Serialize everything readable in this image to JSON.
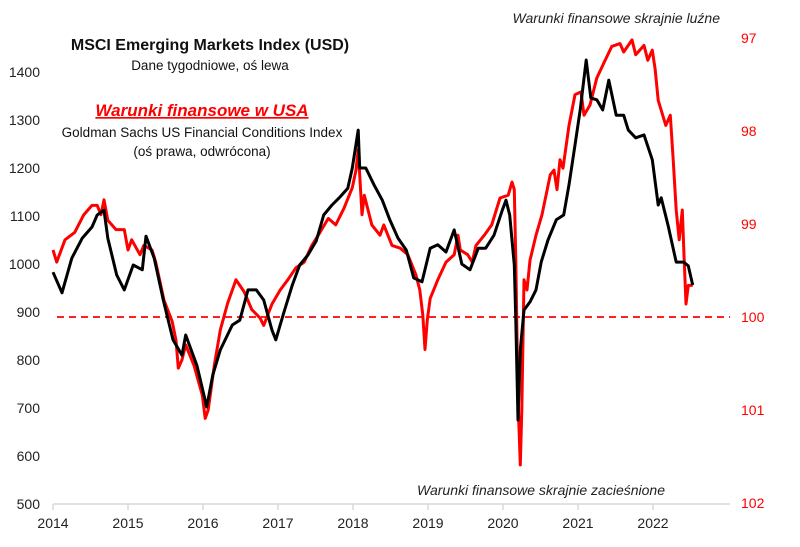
{
  "chart_data": {
    "type": "line",
    "title": "MSCI Emerging Markets Index (USD)",
    "subtitle": "Dane tygodniowe, oś lewa",
    "series2_title": "Warunki finansowe w USA",
    "series2_subtitle": "Goldman Sachs US Financial Conditions Index",
    "series2_note": "(oś prawa, odwrócona)",
    "annotation_top": "Warunki finansowe skrajnie luźne",
    "annotation_bottom": "Warunki finansowe skrajnie zacieśnione",
    "x_ticks": [
      "2014",
      "2015",
      "2016",
      "2017",
      "2018",
      "2019",
      "2020",
      "2021",
      "2022"
    ],
    "xlim": [
      2014,
      2023.05
    ],
    "y_left_ticks": [
      "500",
      "600",
      "700",
      "800",
      "900",
      "1000",
      "1100",
      "1200",
      "1300",
      "1400"
    ],
    "ylim_left": [
      500,
      1400
    ],
    "y_right_ticks": [
      "97",
      "98",
      "99",
      "100",
      "101",
      "102"
    ],
    "ylim_right": [
      102,
      97
    ],
    "y_right_inverted": true,
    "reference_line": {
      "axis": "right",
      "value": 100,
      "style": "dashed",
      "color": "#ff0000"
    },
    "grid": false,
    "series": [
      {
        "name": "MSCI Emerging Markets Index (USD)",
        "axis": "left",
        "color": "#000000",
        "points": [
          [
            2014.0,
            983
          ],
          [
            2014.12,
            940
          ],
          [
            2014.25,
            1012
          ],
          [
            2014.39,
            1054
          ],
          [
            2014.52,
            1077
          ],
          [
            2014.59,
            1102
          ],
          [
            2014.68,
            1112
          ],
          [
            2014.73,
            1054
          ],
          [
            2014.85,
            977
          ],
          [
            2014.95,
            946
          ],
          [
            2015.07,
            998
          ],
          [
            2015.19,
            988
          ],
          [
            2015.24,
            1058
          ],
          [
            2015.35,
            1012
          ],
          [
            2015.47,
            925
          ],
          [
            2015.6,
            842
          ],
          [
            2015.72,
            810
          ],
          [
            2015.77,
            852
          ],
          [
            2015.92,
            788
          ],
          [
            2016.01,
            729
          ],
          [
            2016.05,
            702
          ],
          [
            2016.13,
            769
          ],
          [
            2016.23,
            821
          ],
          [
            2016.39,
            873
          ],
          [
            2016.49,
            883
          ],
          [
            2016.6,
            946
          ],
          [
            2016.71,
            946
          ],
          [
            2016.81,
            925
          ],
          [
            2016.92,
            862
          ],
          [
            2016.97,
            842
          ],
          [
            2017.08,
            900
          ],
          [
            2017.19,
            956
          ],
          [
            2017.29,
            998
          ],
          [
            2017.4,
            1019
          ],
          [
            2017.51,
            1048
          ],
          [
            2017.61,
            1102
          ],
          [
            2017.72,
            1123
          ],
          [
            2017.83,
            1140
          ],
          [
            2017.93,
            1158
          ],
          [
            2017.99,
            1200
          ],
          [
            2018.07,
            1279
          ],
          [
            2018.09,
            1200
          ],
          [
            2018.17,
            1200
          ],
          [
            2018.28,
            1165
          ],
          [
            2018.39,
            1133
          ],
          [
            2018.49,
            1092
          ],
          [
            2018.6,
            1054
          ],
          [
            2018.71,
            1029
          ],
          [
            2018.81,
            971
          ],
          [
            2018.92,
            963
          ],
          [
            2019.03,
            1033
          ],
          [
            2019.13,
            1040
          ],
          [
            2019.24,
            1025
          ],
          [
            2019.35,
            1071
          ],
          [
            2019.45,
            1000
          ],
          [
            2019.56,
            988
          ],
          [
            2019.67,
            1033
          ],
          [
            2019.77,
            1033
          ],
          [
            2019.88,
            1060
          ],
          [
            2019.99,
            1112
          ],
          [
            2020.04,
            1133
          ],
          [
            2020.09,
            1102
          ],
          [
            2020.15,
            998
          ],
          [
            2020.17,
            883
          ],
          [
            2020.2,
            675
          ],
          [
            2020.23,
            821
          ],
          [
            2020.28,
            904
          ],
          [
            2020.36,
            921
          ],
          [
            2020.44,
            946
          ],
          [
            2020.51,
            1004
          ],
          [
            2020.6,
            1050
          ],
          [
            2020.71,
            1092
          ],
          [
            2020.81,
            1102
          ],
          [
            2020.88,
            1165
          ],
          [
            2020.96,
            1248
          ],
          [
            2021.03,
            1321
          ],
          [
            2021.11,
            1425
          ],
          [
            2021.17,
            1346
          ],
          [
            2021.25,
            1342
          ],
          [
            2021.33,
            1321
          ],
          [
            2021.41,
            1383
          ],
          [
            2021.51,
            1310
          ],
          [
            2021.61,
            1310
          ],
          [
            2021.67,
            1279
          ],
          [
            2021.77,
            1263
          ],
          [
            2021.88,
            1269
          ],
          [
            2021.99,
            1217
          ],
          [
            2022.07,
            1123
          ],
          [
            2022.11,
            1138
          ],
          [
            2022.2,
            1081
          ],
          [
            2022.31,
            1004
          ],
          [
            2022.41,
            1004
          ],
          [
            2022.47,
            996
          ],
          [
            2022.53,
            956
          ]
        ]
      },
      {
        "name": "Goldman Sachs US Financial Conditions Index",
        "axis": "right",
        "color": "#ff0000",
        "points": [
          [
            2014.0,
            99.28
          ],
          [
            2014.05,
            99.41
          ],
          [
            2014.16,
            99.17
          ],
          [
            2014.29,
            99.09
          ],
          [
            2014.41,
            98.9
          ],
          [
            2014.52,
            98.8
          ],
          [
            2014.59,
            98.8
          ],
          [
            2014.64,
            98.9
          ],
          [
            2014.68,
            98.74
          ],
          [
            2014.73,
            98.96
          ],
          [
            2014.84,
            99.06
          ],
          [
            2014.95,
            99.06
          ],
          [
            2015.0,
            99.28
          ],
          [
            2015.05,
            99.17
          ],
          [
            2015.16,
            99.33
          ],
          [
            2015.21,
            99.23
          ],
          [
            2015.32,
            99.28
          ],
          [
            2015.37,
            99.41
          ],
          [
            2015.48,
            99.82
          ],
          [
            2015.59,
            100.05
          ],
          [
            2015.64,
            100.25
          ],
          [
            2015.67,
            100.55
          ],
          [
            2015.72,
            100.46
          ],
          [
            2015.77,
            100.3
          ],
          [
            2015.88,
            100.52
          ],
          [
            2015.99,
            100.84
          ],
          [
            2016.03,
            101.09
          ],
          [
            2016.07,
            101.0
          ],
          [
            2016.15,
            100.52
          ],
          [
            2016.23,
            100.14
          ],
          [
            2016.33,
            99.85
          ],
          [
            2016.44,
            99.6
          ],
          [
            2016.55,
            99.73
          ],
          [
            2016.65,
            99.92
          ],
          [
            2016.76,
            100.01
          ],
          [
            2016.81,
            100.09
          ],
          [
            2016.92,
            99.86
          ],
          [
            2017.03,
            99.71
          ],
          [
            2017.13,
            99.6
          ],
          [
            2017.24,
            99.47
          ],
          [
            2017.35,
            99.41
          ],
          [
            2017.45,
            99.23
          ],
          [
            2017.56,
            99.09
          ],
          [
            2017.67,
            98.94
          ],
          [
            2017.77,
            99.01
          ],
          [
            2017.88,
            98.83
          ],
          [
            2017.99,
            98.61
          ],
          [
            2018.04,
            98.42
          ],
          [
            2018.07,
            98.2
          ],
          [
            2018.09,
            98.47
          ],
          [
            2018.12,
            98.9
          ],
          [
            2018.15,
            98.69
          ],
          [
            2018.25,
            99.01
          ],
          [
            2018.36,
            99.12
          ],
          [
            2018.41,
            99.01
          ],
          [
            2018.52,
            99.23
          ],
          [
            2018.63,
            99.26
          ],
          [
            2018.73,
            99.33
          ],
          [
            2018.84,
            99.55
          ],
          [
            2018.89,
            99.71
          ],
          [
            2018.93,
            99.98
          ],
          [
            2018.96,
            100.35
          ],
          [
            2018.99,
            100.03
          ],
          [
            2019.03,
            99.8
          ],
          [
            2019.13,
            99.6
          ],
          [
            2019.24,
            99.41
          ],
          [
            2019.35,
            99.33
          ],
          [
            2019.4,
            99.12
          ],
          [
            2019.43,
            99.28
          ],
          [
            2019.53,
            99.33
          ],
          [
            2019.59,
            99.41
          ],
          [
            2019.64,
            99.23
          ],
          [
            2019.75,
            99.12
          ],
          [
            2019.85,
            99.01
          ],
          [
            2019.96,
            98.72
          ],
          [
            2020.07,
            98.69
          ],
          [
            2020.12,
            98.55
          ],
          [
            2020.15,
            98.63
          ],
          [
            2020.17,
            99.39
          ],
          [
            2020.2,
            100.89
          ],
          [
            2020.23,
            101.59
          ],
          [
            2020.25,
            101.0
          ],
          [
            2020.28,
            99.6
          ],
          [
            2020.32,
            99.71
          ],
          [
            2020.36,
            99.39
          ],
          [
            2020.44,
            99.12
          ],
          [
            2020.52,
            98.9
          ],
          [
            2020.63,
            98.47
          ],
          [
            2020.68,
            98.42
          ],
          [
            2020.72,
            98.63
          ],
          [
            2020.76,
            98.31
          ],
          [
            2020.8,
            98.4
          ],
          [
            2020.88,
            97.94
          ],
          [
            2020.96,
            97.61
          ],
          [
            2021.04,
            97.58
          ],
          [
            2021.08,
            97.83
          ],
          [
            2021.16,
            97.72
          ],
          [
            2021.25,
            97.43
          ],
          [
            2021.35,
            97.26
          ],
          [
            2021.45,
            97.09
          ],
          [
            2021.56,
            97.06
          ],
          [
            2021.61,
            97.15
          ],
          [
            2021.72,
            97.02
          ],
          [
            2021.77,
            97.18
          ],
          [
            2021.88,
            97.08
          ],
          [
            2021.93,
            97.24
          ],
          [
            2021.99,
            97.13
          ],
          [
            2022.03,
            97.34
          ],
          [
            2022.07,
            97.67
          ],
          [
            2022.17,
            97.94
          ],
          [
            2022.23,
            97.83
          ],
          [
            2022.27,
            98.31
          ],
          [
            2022.31,
            98.85
          ],
          [
            2022.35,
            99.17
          ],
          [
            2022.39,
            98.85
          ],
          [
            2022.41,
            99.28
          ],
          [
            2022.44,
            99.86
          ],
          [
            2022.47,
            99.66
          ],
          [
            2022.53,
            99.66
          ]
        ]
      }
    ]
  }
}
